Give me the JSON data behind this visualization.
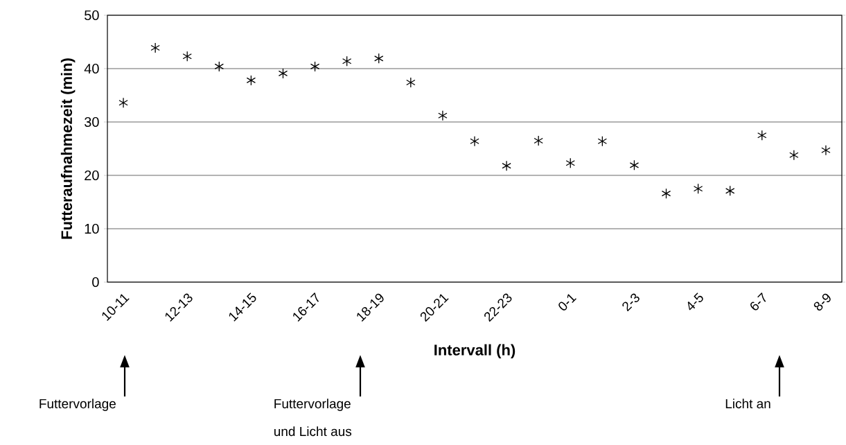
{
  "chart_data": {
    "type": "scatter",
    "xlabel": "Intervall (h)",
    "ylabel": "Futteraufnahmezeit (min)",
    "categories": [
      "10-11",
      null,
      "12-13",
      null,
      "14-15",
      null,
      "16-17",
      null,
      "18-19",
      null,
      "20-21",
      null,
      "22-23",
      null,
      "0-1",
      null,
      "2-3",
      null,
      "4-5",
      null,
      "6-7",
      null,
      "8-9"
    ],
    "values": [
      33.6,
      43.9,
      42.3,
      40.4,
      37.8,
      39.1,
      40.4,
      41.4,
      41.9,
      37.4,
      31.2,
      26.4,
      21.8,
      26.5,
      22.3,
      26.4,
      21.9,
      16.6,
      17.5,
      17.1,
      27.5,
      23.8,
      24.7
    ],
    "color": "#000000",
    "marker": "cross",
    "ylim": [
      0,
      50
    ],
    "yticks": [
      0,
      10,
      20,
      30,
      40,
      50
    ],
    "grid": "y",
    "annotations": [
      "Futtervorlage",
      "Futtervorlage und Licht aus",
      "Licht an"
    ]
  }
}
